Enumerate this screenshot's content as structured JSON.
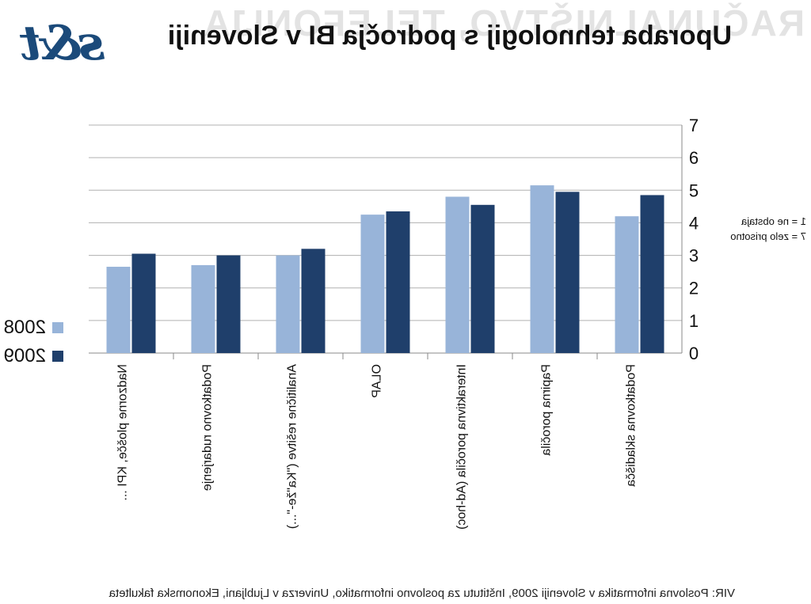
{
  "page": {
    "watermark": "RAČUNALNIŠTVO, TELEFONIJA",
    "logo_text": "s&t",
    "title": "Uporaba tehnologij s področja BI v Sloveniji",
    "footer": "VIR: Poslovna informatika v Sloveniji 2009, Inštitutu za poslovno informatiko, Univerza v Ljubljani, Ekonomska fakulteta",
    "scale_note": [
      "1 = ne obstaja",
      "7 = zelo prisotno"
    ]
  },
  "chart_data": {
    "type": "bar",
    "title": "Uporaba tehnologij s področja BI v Sloveniji",
    "categories": [
      "Podatkovna skladišča",
      "Papirna poročila",
      "Interaktivna poročila (Ad-hoc)",
      "OLAP",
      "Analitične rešitve (\"Ka\"že-\"...)",
      "Podatkovno rudarjenje",
      "Nadzorne plošče, KPI ..."
    ],
    "series": [
      {
        "name": "2009",
        "color": "#1f3f6b",
        "values": [
          4.85,
          4.95,
          4.55,
          4.35,
          3.2,
          3.0,
          3.05
        ]
      },
      {
        "name": "2008",
        "color": "#98b4d9",
        "values": [
          4.2,
          5.15,
          4.8,
          4.25,
          3.0,
          2.7,
          2.65
        ]
      }
    ],
    "yticks": [
      "0",
      "1",
      "2",
      "3",
      "4",
      "5",
      "6",
      "7"
    ],
    "ylim": [
      0,
      7
    ],
    "grid": true,
    "legend_position": "left",
    "mirrored": true
  }
}
